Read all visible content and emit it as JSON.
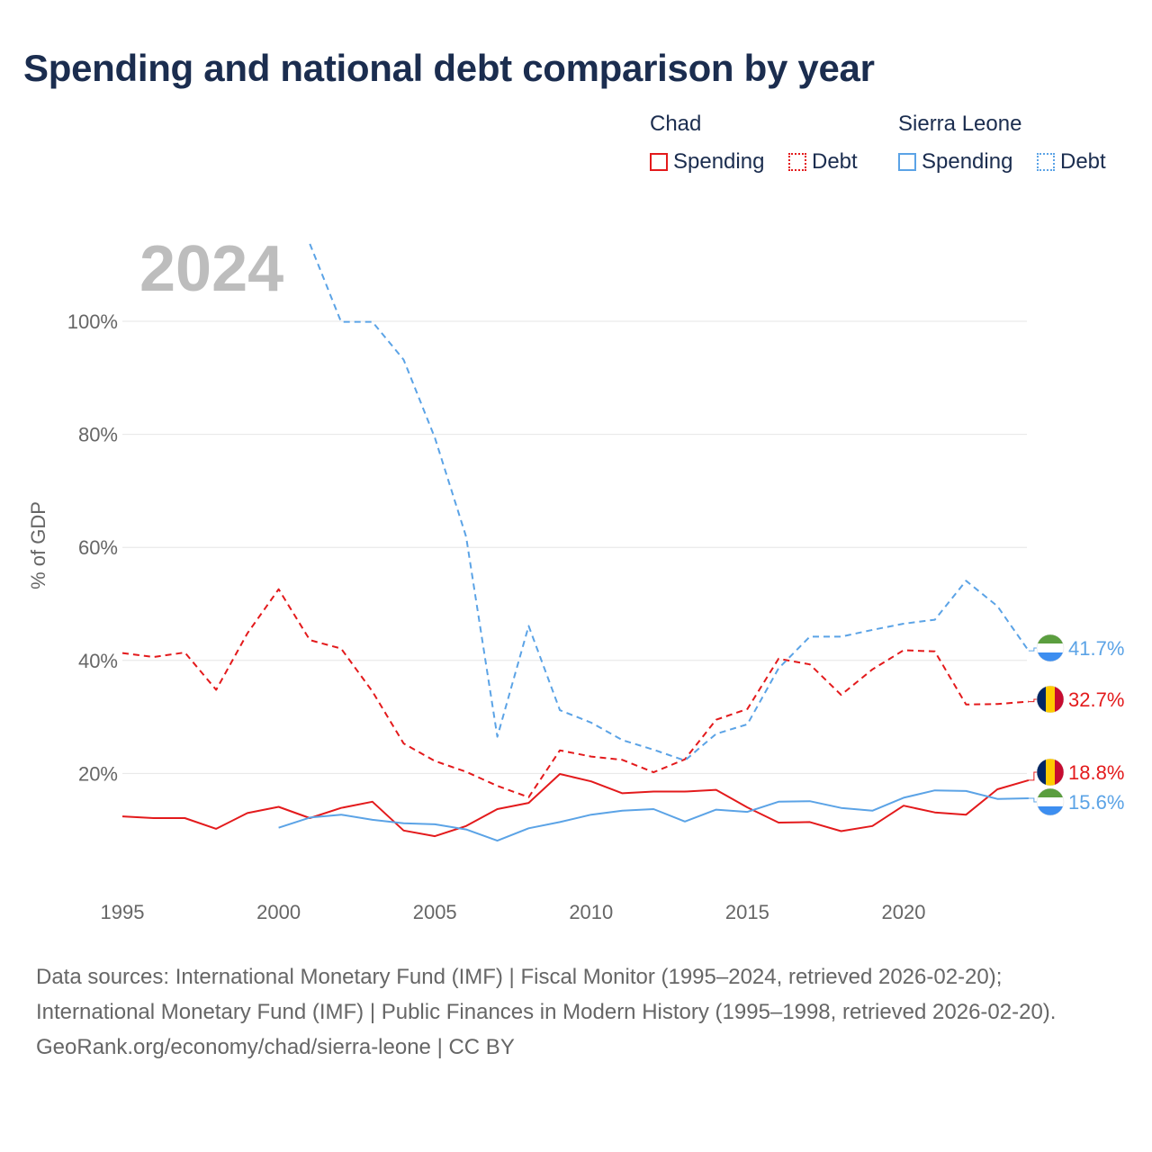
{
  "title": "Spending and national debt comparison by year",
  "legend": {
    "groups": [
      {
        "country": "Chad",
        "spending_label": "Spending",
        "debt_label": "Debt",
        "color": "#e31a1c"
      },
      {
        "country": "Sierra Leone",
        "spending_label": "Spending",
        "debt_label": "Debt",
        "color": "#5ba3e6"
      }
    ]
  },
  "footer": {
    "sources": "Data sources: International Monetary Fund (IMF) | Fiscal Monitor (1995–2024, retrieved 2026-02-20); International Monetary Fund (IMF) | Public Finances in Modern History (1995–1998, retrieved 2026-02-20).",
    "attribution": "GeoRank.org/economy/chad/sierra-leone | CC BY"
  },
  "chart_data": {
    "type": "line",
    "year_label": "2024",
    "ylabel": "% of GDP",
    "xlim": [
      1995,
      2024
    ],
    "ylim": [
      0,
      100
    ],
    "x_ticks": [
      1995,
      2000,
      2005,
      2010,
      2015,
      2020
    ],
    "y_ticks": [
      20,
      40,
      60,
      80,
      100
    ],
    "y_tick_labels": [
      "20%",
      "40%",
      "60%",
      "80%",
      "100%"
    ],
    "series": [
      {
        "name": "Chad Debt",
        "country": "Chad",
        "metric": "Debt",
        "color": "#e31a1c",
        "dashed": true,
        "x": [
          1995,
          1996,
          1997,
          1998,
          1999,
          2000,
          2001,
          2002,
          2003,
          2004,
          2005,
          2006,
          2007,
          2008,
          2009,
          2010,
          2011,
          2012,
          2013,
          2014,
          2015,
          2016,
          2017,
          2018,
          2019,
          2020,
          2021,
          2022,
          2023,
          2024
        ],
        "values": [
          41.3,
          40.6,
          41.4,
          34.8,
          44.8,
          52.6,
          43.6,
          42.1,
          34.5,
          25.3,
          22.2,
          20.3,
          17.8,
          15.8,
          24.1,
          23.0,
          22.4,
          20.2,
          22.5,
          29.5,
          31.4,
          40.3,
          39.3,
          33.9,
          38.4,
          41.8,
          41.6,
          32.2,
          32.3,
          32.7
        ],
        "end_label": "32.7%"
      },
      {
        "name": "Sierra Leone Debt",
        "country": "Sierra Leone",
        "metric": "Debt",
        "color": "#5ba3e6",
        "dashed": true,
        "x": [
          2001,
          2002,
          2003,
          2004,
          2005,
          2006,
          2007,
          2008,
          2009,
          2010,
          2011,
          2012,
          2013,
          2014,
          2015,
          2016,
          2017,
          2018,
          2019,
          2020,
          2021,
          2022,
          2023,
          2024
        ],
        "values": [
          113.7,
          99.9,
          99.9,
          93.2,
          79.4,
          61.9,
          26.5,
          46.1,
          31.2,
          29.0,
          25.9,
          24.2,
          22.3,
          27.0,
          28.7,
          38.6,
          44.2,
          44.2,
          45.4,
          46.5,
          47.2,
          54.1,
          49.6,
          41.7
        ],
        "end_label": "41.7%"
      },
      {
        "name": "Chad Spending",
        "country": "Chad",
        "metric": "Spending",
        "color": "#e31a1c",
        "dashed": false,
        "x": [
          1995,
          1996,
          1997,
          1998,
          1999,
          2000,
          2001,
          2002,
          2003,
          2004,
          2005,
          2006,
          2007,
          2008,
          2009,
          2010,
          2011,
          2012,
          2013,
          2014,
          2015,
          2016,
          2017,
          2018,
          2019,
          2020,
          2021,
          2022,
          2023,
          2024
        ],
        "values": [
          12.4,
          12.1,
          12.1,
          10.2,
          13.0,
          14.1,
          12.1,
          13.9,
          15.0,
          9.9,
          8.9,
          10.7,
          13.7,
          14.8,
          19.9,
          18.6,
          16.5,
          16.8,
          16.8,
          17.1,
          14.0,
          11.3,
          11.4,
          9.8,
          10.7,
          14.3,
          13.1,
          12.7,
          17.2,
          18.8
        ],
        "end_label": "18.8%"
      },
      {
        "name": "Sierra Leone Spending",
        "country": "Sierra Leone",
        "metric": "Spending",
        "color": "#5ba3e6",
        "dashed": false,
        "x": [
          2000,
          2001,
          2002,
          2003,
          2004,
          2005,
          2006,
          2007,
          2008,
          2009,
          2010,
          2011,
          2012,
          2013,
          2014,
          2015,
          2016,
          2017,
          2018,
          2019,
          2020,
          2021,
          2022,
          2023,
          2024
        ],
        "values": [
          10.4,
          12.2,
          12.7,
          11.8,
          11.2,
          11.0,
          10.1,
          8.1,
          10.3,
          11.4,
          12.7,
          13.4,
          13.7,
          11.5,
          13.6,
          13.2,
          15.0,
          15.1,
          13.9,
          13.4,
          15.7,
          17.0,
          16.9,
          15.5,
          15.6
        ],
        "end_label": "15.6%"
      }
    ]
  }
}
